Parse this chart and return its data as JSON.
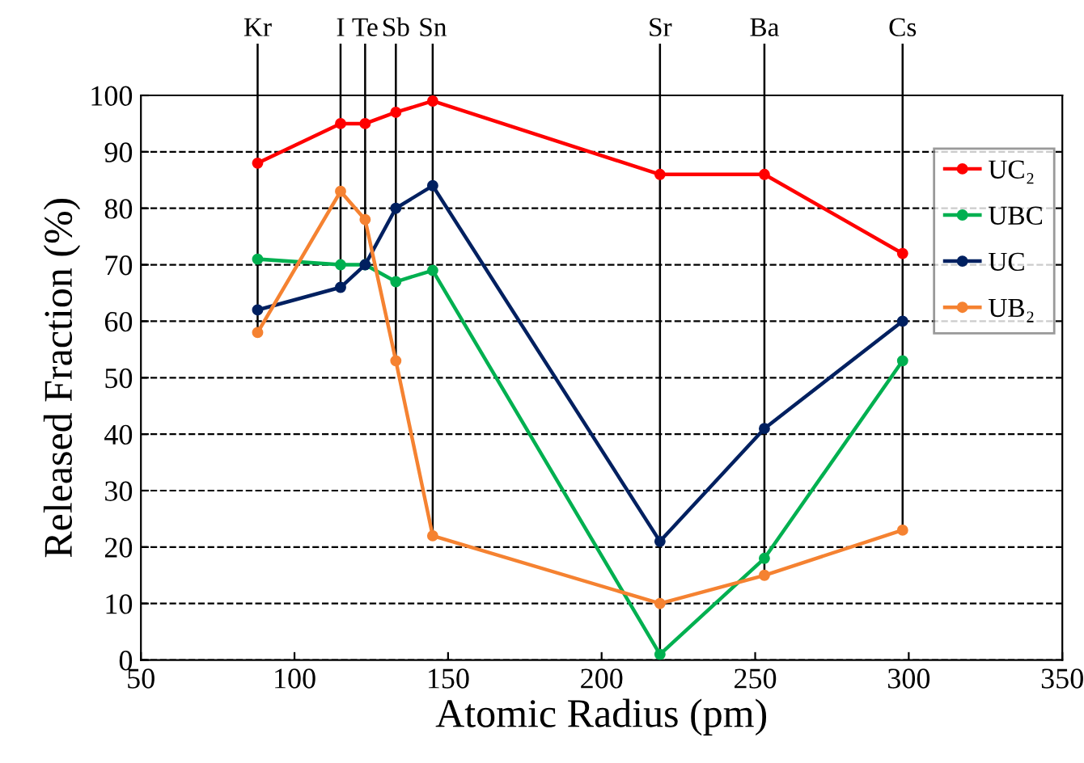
{
  "chart_data": {
    "type": "line",
    "xlabel": "Atomic Radius (pm)",
    "ylabel": "Released Fraction (%)",
    "x": [
      88,
      115,
      123,
      133,
      145,
      219,
      253,
      298
    ],
    "series": [
      {
        "name": "UC₂",
        "color": "#ff0000",
        "values": [
          88,
          95,
          95,
          97,
          99,
          86,
          86,
          72
        ]
      },
      {
        "name": "UBC",
        "color": "#00b050",
        "values": [
          71,
          70,
          70,
          67,
          69,
          1,
          18,
          53
        ]
      },
      {
        "name": "UC",
        "color": "#002060",
        "values": [
          62,
          66,
          70,
          80,
          84,
          21,
          41,
          60
        ]
      },
      {
        "name": "UB₂",
        "color": "#f58231",
        "values": [
          58,
          83,
          78,
          53,
          22,
          10,
          15,
          23
        ]
      }
    ],
    "ref_lines": [
      {
        "axis": "x",
        "value": 88,
        "label": "Kr",
        "color": "#000000"
      },
      {
        "axis": "x",
        "value": 115,
        "label": "I",
        "color": "#000000"
      },
      {
        "axis": "x",
        "value": 123,
        "label": "Te",
        "color": "#000000"
      },
      {
        "axis": "x",
        "value": 133,
        "label": "Sb",
        "color": "#000000"
      },
      {
        "axis": "x",
        "value": 145,
        "label": "Sn",
        "color": "#000000"
      },
      {
        "axis": "x",
        "value": 219,
        "label": "Sr",
        "color": "#000000"
      },
      {
        "axis": "x",
        "value": 253,
        "label": "Ba",
        "color": "#000000"
      },
      {
        "axis": "x",
        "value": 298,
        "label": "Cs",
        "color": "#000000"
      }
    ],
    "xlim": [
      50,
      350
    ],
    "xticks": [
      50,
      100,
      150,
      200,
      250,
      300,
      350
    ],
    "ylim": [
      0,
      100
    ],
    "yticks": [
      0,
      10,
      20,
      30,
      40,
      50,
      60,
      70,
      80,
      90,
      100
    ],
    "grid": "y",
    "legend": "top right",
    "marker": "circle",
    "line_style": "solid"
  }
}
